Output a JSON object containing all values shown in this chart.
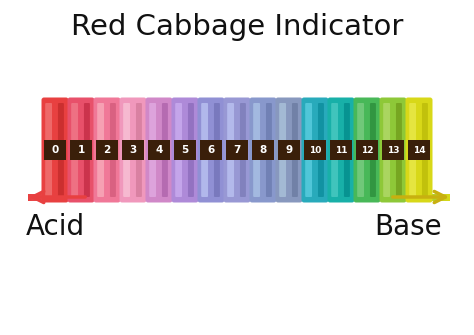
{
  "title": "Red Cabbage Indicator",
  "title_fontsize": 21,
  "title_color": "#111111",
  "acid_label": "Acid",
  "base_label": "Base",
  "label_fontsize": 20,
  "tube_colors": [
    "#E84040",
    "#E8506A",
    "#F07898",
    "#F098BC",
    "#D088C8",
    "#AE8AD8",
    "#9090D4",
    "#9898D4",
    "#8898CC",
    "#8898BE",
    "#28AABB",
    "#18B0A8",
    "#48B858",
    "#8EC838",
    "#D8D818"
  ],
  "tube_highlight_colors": [
    "#F07070",
    "#F07888",
    "#F8A8B8",
    "#F8C0D4",
    "#E0A8E0",
    "#C8AAEE",
    "#B8C0F0",
    "#B8C0F0",
    "#A8C0E4",
    "#A8C0D8",
    "#58CCDE",
    "#48C8C0",
    "#78CC80",
    "#B0D868",
    "#E8E848"
  ],
  "tube_shadow_colors": [
    "#C02828",
    "#C02840",
    "#D05878",
    "#D07898",
    "#AA60A8",
    "#8868B8",
    "#7070B4",
    "#7878B4",
    "#6878AC",
    "#68789E",
    "#088898",
    "#008888",
    "#288838",
    "#6E9818",
    "#B8B808"
  ],
  "label_band_color": "#3A1F0A",
  "label_text_color": "#FFFFFF",
  "background_color": "#FFFFFF",
  "gradient_stops": [
    "#E84040",
    "#F090B0",
    "#CC80C8",
    "#9090D4",
    "#8898BE",
    "#28AABB",
    "#48B858",
    "#D8D818"
  ],
  "arrow_left_color": "#E84040",
  "arrow_right_color": "#C8B010"
}
